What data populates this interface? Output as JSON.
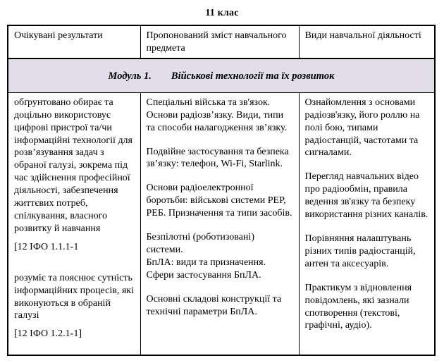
{
  "title": "11 клас",
  "table": {
    "headers": [
      "Очікувані результати",
      "Пропонований зміст навчального предмета",
      "Види навчальної діяльності"
    ],
    "module": {
      "label": "Модуль 1.",
      "title": "Військові технології та їх розвиток"
    },
    "expected_results": {
      "p1": "обґрунтовано обирає та доцільно використовує цифрові пристрої та/чи інформаційні технології для розв’язування задач з обраної галузі, зокрема під час здійснення професійної діяльності, забезпечення життєвих потреб, спілкування, власного розвитку й навчання",
      "code1": "[12 ІФО 1.1.1-1",
      "p2": "розуміє та пояснює сутність інформаційних процесів, які виконуються в обраній галузі",
      "code2": "[12 ІФО 1.2.1-1]"
    },
    "content": {
      "paragraphs": [
        "Спеціальні війська та зв'язок. Основи радіозв’язку. Види, типи та способи налагодження зв’язку.",
        "Подвійне застосування та безпека зв’язку: телефон, Wi-Fi, Starlink.",
        "Основи радіоелектронної боротьби: військові системи РЕР, РЕБ. Призначення та типи засобів.",
        "Безпілотні (роботизовані) системи.\nБпЛА: види та призначення.\nСфери застосування БпЛА.",
        "Основні складові конструкції та технічні параметри БпЛА."
      ]
    },
    "activities": {
      "paragraphs": [
        "Ознайомлення з основами радіозв'язку, його роллю на полі бою, типами радіостанцій, частотами та сигналами.",
        "Перегляд навчальних відео про радіообмін, правила ведення зв'язку та безпеку використання різних каналів.",
        "Порівняння налаштувань різних типів радіостанцій, антен та аксесуарів.",
        "Практикум з відновлення повідомлень, які зазнали спотворення (текстові, графічні, аудіо)."
      ]
    }
  },
  "colors": {
    "module_row_background": "#e1dde9",
    "table_border": "#000000",
    "text": "#000000"
  }
}
